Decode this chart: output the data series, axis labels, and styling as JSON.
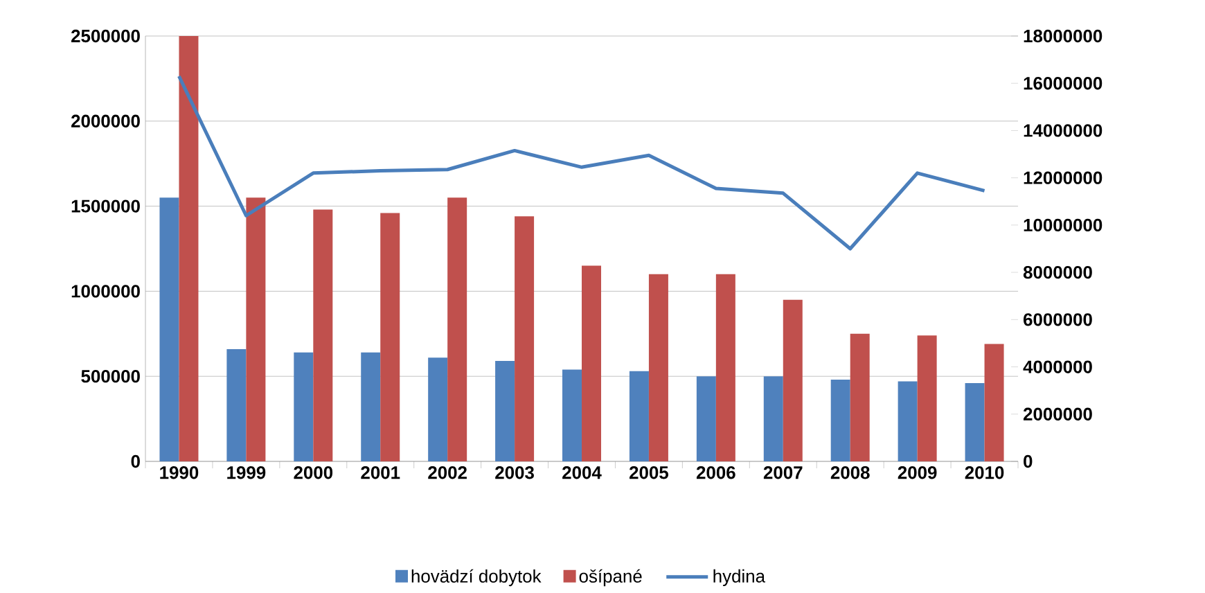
{
  "chart_data": {
    "type": "bar",
    "categories": [
      "1990",
      "1999",
      "2000",
      "2001",
      "2002",
      "2003",
      "2004",
      "2005",
      "2006",
      "2007",
      "2008",
      "2009",
      "2010"
    ],
    "series": [
      {
        "name": "hovädzí dobytok",
        "color": "#4f81bd",
        "values": [
          1550000,
          660000,
          640000,
          640000,
          610000,
          590000,
          540000,
          530000,
          500000,
          500000,
          480000,
          470000,
          460000
        ]
      },
      {
        "name": "ošípané",
        "color": "#c0504d",
        "values": [
          2500000,
          1550000,
          1480000,
          1460000,
          1550000,
          1440000,
          1150000,
          1100000,
          1100000,
          950000,
          750000,
          740000,
          690000
        ]
      },
      {
        "name": "hydina",
        "color": "#4a7ebb",
        "type": "line",
        "axis": "y2",
        "values": [
          16300000,
          10400000,
          12200000,
          12300000,
          12350000,
          13150000,
          12450000,
          12950000,
          11550000,
          11350000,
          9000000,
          12200000,
          11450000
        ]
      }
    ],
    "ylim": [
      0,
      2500000
    ],
    "yticks": [
      0,
      500000,
      1000000,
      1500000,
      2000000,
      2500000
    ],
    "y2lim": [
      0,
      18000000
    ],
    "y2ticks": [
      0,
      2000000,
      4000000,
      6000000,
      8000000,
      10000000,
      12000000,
      14000000,
      16000000,
      18000000
    ],
    "grid": "y",
    "legend": "bottom"
  }
}
